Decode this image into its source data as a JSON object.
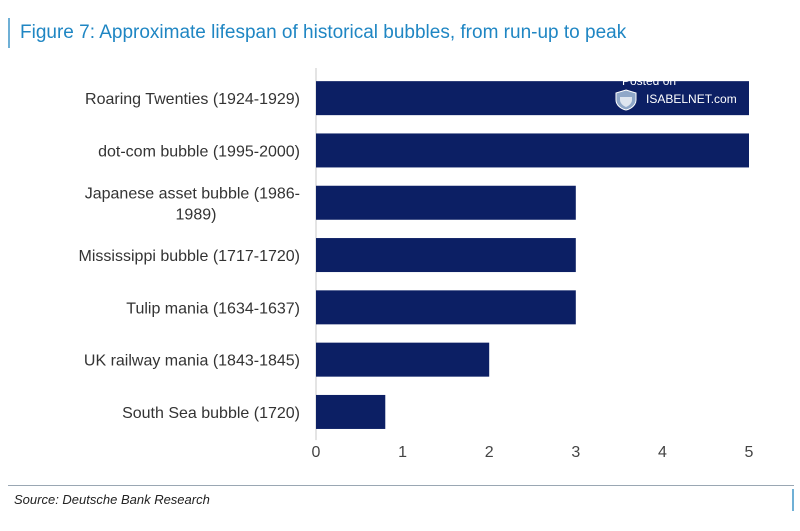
{
  "header": {
    "title": "Figure 7: Approximate lifespan of historical bubbles, from run-up to peak"
  },
  "chart_data": {
    "type": "bar",
    "orientation": "horizontal",
    "title": "",
    "xlabel": "",
    "ylabel": "",
    "categories": [
      "Roaring Twenties (1924-1929)",
      "dot-com bubble (1995-2000)",
      "Japanese asset bubble  (1986-1989)",
      "Mississippi bubble (1717-1720)",
      "Tulip mania (1634-1637)",
      "UK railway mania (1843-1845)",
      "South Sea bubble (1720)"
    ],
    "category_lines": [
      [
        "Roaring Twenties (1924-1929)"
      ],
      [
        "dot-com bubble (1995-2000)"
      ],
      [
        "Japanese asset bubble  (1986-",
        "1989)"
      ],
      [
        "Mississippi bubble (1717-1720)"
      ],
      [
        "Tulip mania (1634-1637)"
      ],
      [
        "UK railway mania (1843-1845)"
      ],
      [
        "South Sea bubble (1720)"
      ]
    ],
    "values": [
      5,
      5,
      3,
      3,
      3,
      2,
      0.8
    ],
    "xlim": [
      0,
      5
    ],
    "xticks": [
      "0",
      "1",
      "2",
      "3",
      "4",
      "5"
    ],
    "grid": false,
    "legend": "none",
    "bar_color": "#0c1f64"
  },
  "watermark": {
    "line1": "Posted on",
    "line2": "ISABELNET.com"
  },
  "footer": {
    "source": "Source: Deutsche Bank Research"
  },
  "colors": {
    "title": "#1f86c3",
    "accent_line": "#6fb0d6",
    "bar": "#0c1f64"
  }
}
